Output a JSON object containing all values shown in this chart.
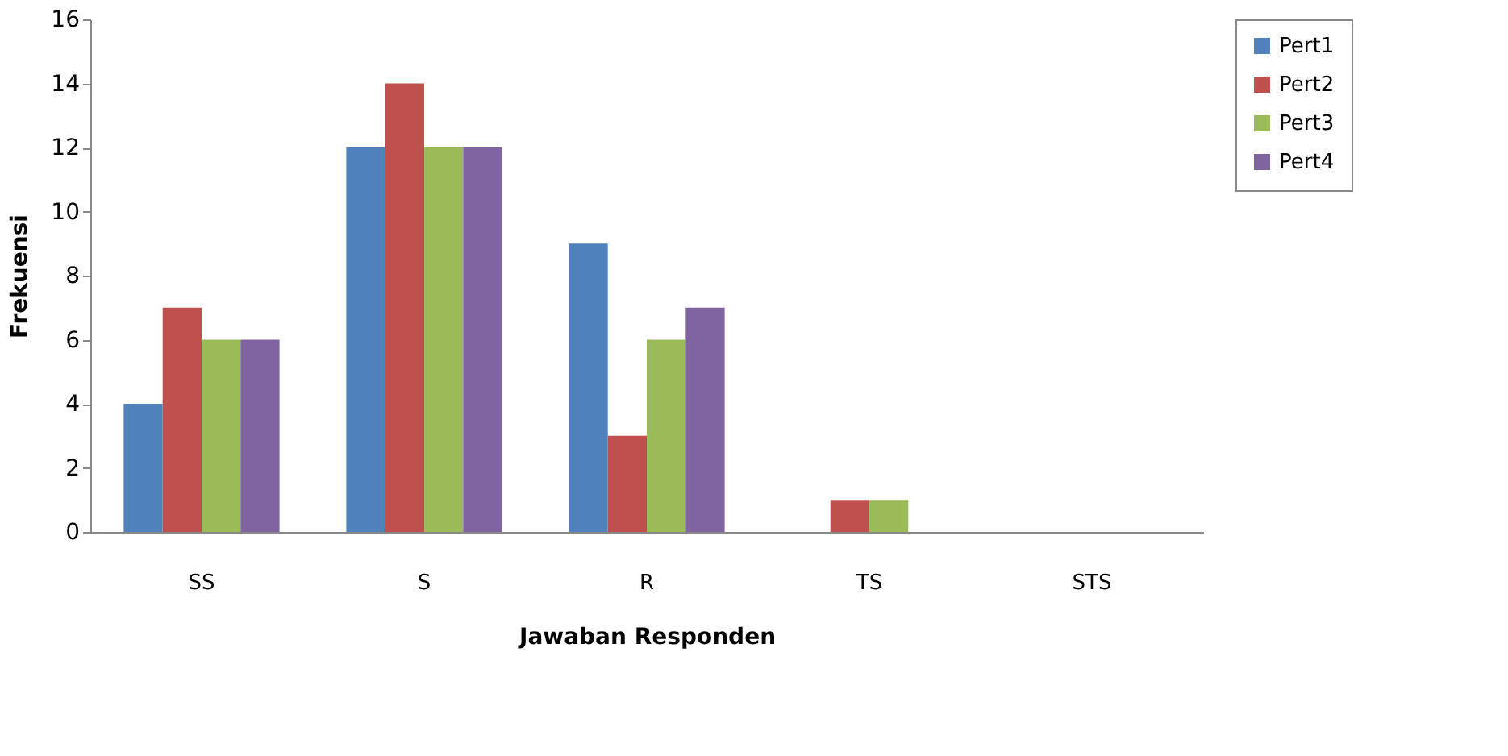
{
  "chart_data": {
    "type": "bar",
    "xlabel": "Jawaban Responden",
    "ylabel": "Frekuensi",
    "categories": [
      "SS",
      "S",
      "R",
      "TS",
      "STS"
    ],
    "series": [
      {
        "name": "Pert1",
        "color": "#4f81bd",
        "values": [
          4,
          12,
          9,
          0,
          0
        ]
      },
      {
        "name": "Pert2",
        "color": "#c0504d",
        "values": [
          7,
          14,
          3,
          1,
          0
        ]
      },
      {
        "name": "Pert3",
        "color": "#9bbb59",
        "values": [
          6,
          12,
          6,
          1,
          0
        ]
      },
      {
        "name": "Pert4",
        "color": "#8064a2",
        "values": [
          6,
          12,
          7,
          0,
          0
        ]
      }
    ],
    "ylim": [
      0,
      16
    ],
    "yticks": [
      0,
      2,
      4,
      6,
      8,
      10,
      12,
      14,
      16
    ],
    "grid": false,
    "legend": "right"
  }
}
